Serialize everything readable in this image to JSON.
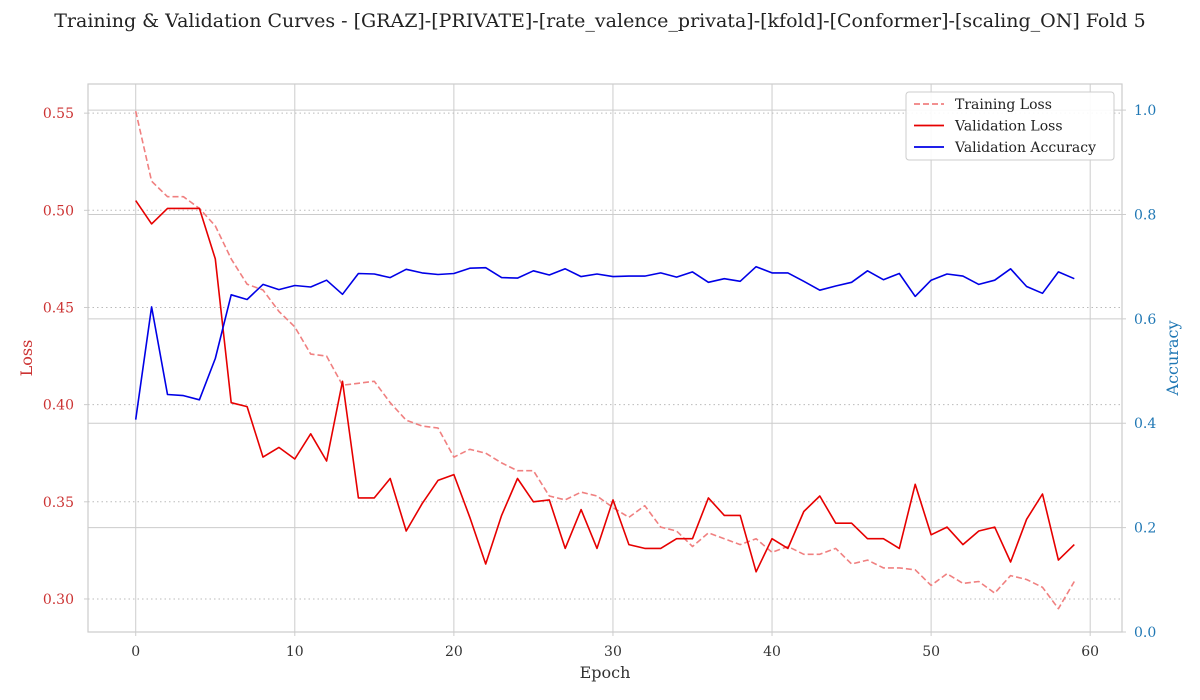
{
  "chart_data": {
    "type": "line",
    "title": "Training & Validation Curves - [GRAZ]-[PRIVATE]-[rate_valence_privata]-[kfold]-[Conformer]-[scaling_ON] Fold 5",
    "xlabel": "Epoch",
    "ylabel": "Loss",
    "ylabel_right": "Accuracy",
    "xlim": [
      -3,
      62
    ],
    "ylim": [
      0.283,
      0.565
    ],
    "ylim_right": [
      0.0,
      1.05
    ],
    "xticks": [
      0,
      10,
      20,
      30,
      40,
      50,
      60
    ],
    "yticks": [
      0.3,
      0.35,
      0.4,
      0.45,
      0.5,
      0.55
    ],
    "yticks_right": [
      0.0,
      0.2,
      0.4,
      0.6,
      0.8,
      1.0
    ],
    "grid": true,
    "legend_position": "top-right",
    "colors": {
      "training_loss": "#f08080",
      "validation_loss": "#e60000",
      "validation_accuracy": "#0000e6",
      "left_axis_ticks": "#cc3333",
      "right_axis_ticks": "#1f77b4"
    },
    "series": [
      {
        "name": "Training Loss",
        "axis": "left",
        "style": "dashed",
        "x": [
          0,
          1,
          2,
          3,
          4,
          5,
          6,
          7,
          8,
          9,
          10,
          11,
          12,
          13,
          14,
          15,
          16,
          17,
          18,
          19,
          20,
          21,
          22,
          23,
          24,
          25,
          26,
          27,
          28,
          29,
          30,
          31,
          32,
          33,
          34,
          35,
          36,
          37,
          38,
          39,
          40,
          41,
          42,
          43,
          44,
          45,
          46,
          47,
          48,
          49,
          50,
          51,
          52,
          53,
          54,
          55,
          56,
          57,
          58,
          59
        ],
        "values": [
          0.551,
          0.515,
          0.507,
          0.507,
          0.501,
          0.492,
          0.475,
          0.462,
          0.459,
          0.448,
          0.44,
          0.426,
          0.425,
          0.41,
          0.411,
          0.412,
          0.401,
          0.392,
          0.389,
          0.388,
          0.373,
          0.377,
          0.375,
          0.37,
          0.366,
          0.366,
          0.353,
          0.351,
          0.355,
          0.353,
          0.347,
          0.342,
          0.348,
          0.337,
          0.335,
          0.327,
          0.334,
          0.331,
          0.328,
          0.331,
          0.324,
          0.327,
          0.323,
          0.323,
          0.326,
          0.318,
          0.32,
          0.316,
          0.316,
          0.315,
          0.307,
          0.313,
          0.308,
          0.309,
          0.303,
          0.312,
          0.31,
          0.306,
          0.295,
          0.309
        ]
      },
      {
        "name": "Validation Loss",
        "axis": "left",
        "style": "solid",
        "x": [
          0,
          1,
          2,
          3,
          4,
          5,
          6,
          7,
          8,
          9,
          10,
          11,
          12,
          13,
          14,
          15,
          16,
          17,
          18,
          19,
          20,
          21,
          22,
          23,
          24,
          25,
          26,
          27,
          28,
          29,
          30,
          31,
          32,
          33,
          34,
          35,
          36,
          37,
          38,
          39,
          40,
          41,
          42,
          43,
          44,
          45,
          46,
          47,
          48,
          49,
          50,
          51,
          52,
          53,
          54,
          55,
          56,
          57,
          58,
          59
        ],
        "values": [
          0.505,
          0.493,
          0.501,
          0.501,
          0.501,
          0.475,
          0.401,
          0.399,
          0.373,
          0.378,
          0.372,
          0.385,
          0.371,
          0.412,
          0.352,
          0.352,
          0.362,
          0.335,
          0.349,
          0.361,
          0.364,
          0.342,
          0.318,
          0.343,
          0.362,
          0.35,
          0.351,
          0.326,
          0.346,
          0.326,
          0.351,
          0.328,
          0.326,
          0.326,
          0.331,
          0.331,
          0.352,
          0.343,
          0.343,
          0.314,
          0.331,
          0.326,
          0.345,
          0.353,
          0.339,
          0.339,
          0.331,
          0.331,
          0.326,
          0.359,
          0.333,
          0.337,
          0.328,
          0.335,
          0.337,
          0.319,
          0.341,
          0.354,
          0.32,
          0.328
        ]
      },
      {
        "name": "Validation Accuracy",
        "axis": "right",
        "style": "solid",
        "x": [
          0,
          1,
          2,
          3,
          4,
          5,
          6,
          7,
          8,
          9,
          10,
          11,
          12,
          13,
          14,
          15,
          16,
          17,
          18,
          19,
          20,
          21,
          22,
          23,
          24,
          25,
          26,
          27,
          28,
          29,
          30,
          31,
          32,
          33,
          34,
          35,
          36,
          37,
          38,
          39,
          40,
          41,
          42,
          43,
          44,
          45,
          46,
          47,
          48,
          49,
          50,
          51,
          52,
          53,
          54,
          55,
          56,
          57,
          58,
          59
        ],
        "values": [
          0.407,
          0.623,
          0.455,
          0.453,
          0.445,
          0.524,
          0.646,
          0.637,
          0.666,
          0.656,
          0.664,
          0.661,
          0.674,
          0.647,
          0.687,
          0.686,
          0.679,
          0.695,
          0.688,
          0.685,
          0.687,
          0.697,
          0.698,
          0.679,
          0.678,
          0.692,
          0.684,
          0.696,
          0.681,
          0.686,
          0.681,
          0.682,
          0.682,
          0.688,
          0.68,
          0.69,
          0.67,
          0.677,
          0.672,
          0.7,
          0.688,
          0.688,
          0.672,
          0.655,
          0.663,
          0.67,
          0.692,
          0.675,
          0.687,
          0.643,
          0.674,
          0.686,
          0.682,
          0.666,
          0.674,
          0.696,
          0.662,
          0.649,
          0.69,
          0.677
        ]
      }
    ]
  }
}
